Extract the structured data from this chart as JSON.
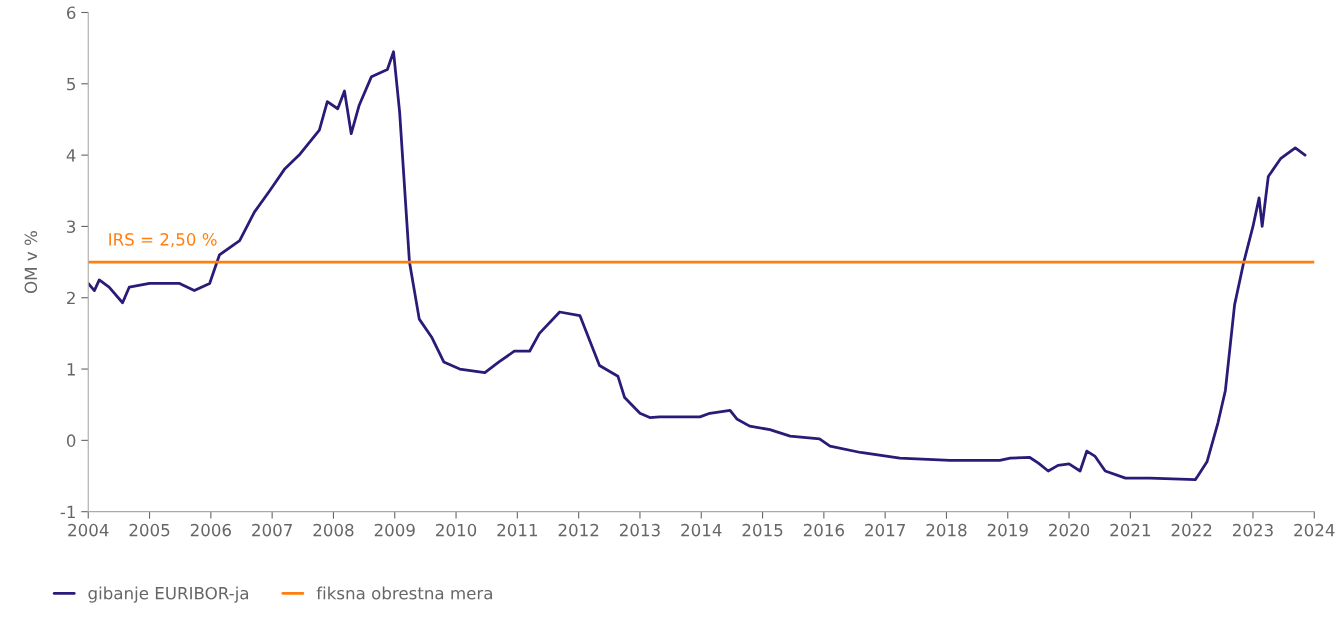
{
  "chart_data": {
    "type": "line",
    "ylabel": "OM v %",
    "x": [
      2004.0,
      2004.1,
      2004.18,
      2004.34,
      2004.56,
      2004.67,
      2005.0,
      2005.49,
      2005.73,
      2005.98,
      2006.14,
      2006.47,
      2006.71,
      2006.96,
      2007.2,
      2007.44,
      2007.77,
      2007.9,
      2008.07,
      2008.18,
      2008.29,
      2008.42,
      2008.62,
      2008.88,
      2008.98,
      2009.08,
      2009.24,
      2009.4,
      2009.6,
      2009.8,
      2010.06,
      2010.47,
      2010.7,
      2010.95,
      2011.2,
      2011.36,
      2011.69,
      2012.02,
      2012.18,
      2012.34,
      2012.64,
      2012.75,
      2013.0,
      2013.16,
      2013.32,
      2013.98,
      2014.14,
      2014.47,
      2014.58,
      2014.79,
      2015.12,
      2015.45,
      2015.93,
      2016.1,
      2016.6,
      2017.24,
      2018.06,
      2018.87,
      2019.04,
      2019.36,
      2019.5,
      2019.66,
      2019.82,
      2020.0,
      2020.18,
      2020.29,
      2020.42,
      2020.59,
      2020.92,
      2021.32,
      2022.06,
      2022.1,
      2022.25,
      2022.43,
      2022.55,
      2022.7,
      2022.85,
      2023.0,
      2023.1,
      2023.15,
      2023.25,
      2023.45,
      2023.69,
      2023.85
    ],
    "series": [
      {
        "name": "gibanje EURIBOR-ja",
        "color": "#2b1a78",
        "values": [
          2.2,
          2.1,
          2.25,
          2.15,
          1.93,
          2.15,
          2.2,
          2.2,
          2.1,
          2.2,
          2.6,
          2.8,
          3.2,
          3.5,
          3.8,
          4.0,
          4.35,
          4.75,
          4.65,
          4.9,
          4.3,
          4.7,
          5.1,
          5.2,
          5.45,
          4.6,
          2.5,
          1.7,
          1.45,
          1.1,
          1.0,
          0.95,
          1.1,
          1.25,
          1.25,
          1.5,
          1.8,
          1.75,
          1.4,
          1.05,
          0.9,
          0.6,
          0.38,
          0.32,
          0.33,
          0.33,
          0.38,
          0.42,
          0.3,
          0.2,
          0.15,
          0.06,
          0.02,
          -0.08,
          -0.17,
          -0.25,
          -0.28,
          -0.28,
          -0.25,
          -0.24,
          -0.32,
          -0.43,
          -0.35,
          -0.33,
          -0.43,
          -0.15,
          -0.22,
          -0.43,
          -0.53,
          -0.53,
          -0.55,
          -0.5,
          -0.3,
          0.25,
          0.7,
          1.9,
          2.5,
          3.0,
          3.4,
          3.0,
          3.7,
          3.95,
          4.1,
          4.0
        ]
      }
    ],
    "xlim": [
      2004,
      2024
    ],
    "xticks": [
      2004,
      2005,
      2006,
      2007,
      2008,
      2009,
      2010,
      2011,
      2012,
      2013,
      2014,
      2015,
      2016,
      2017,
      2018,
      2019,
      2020,
      2021,
      2022,
      2023,
      2024
    ],
    "ylim": [
      -1,
      6
    ],
    "yticks": [
      -1,
      0,
      1,
      2,
      3,
      4,
      5,
      6
    ],
    "ref_lines": [
      {
        "axis": "y",
        "value": 2.5,
        "label": "fiksna obrestna mera",
        "color": "#ff7f0e"
      }
    ],
    "annotations": [
      "IRS = 2,50 %"
    ],
    "legend": "bottom left",
    "grid": false
  }
}
